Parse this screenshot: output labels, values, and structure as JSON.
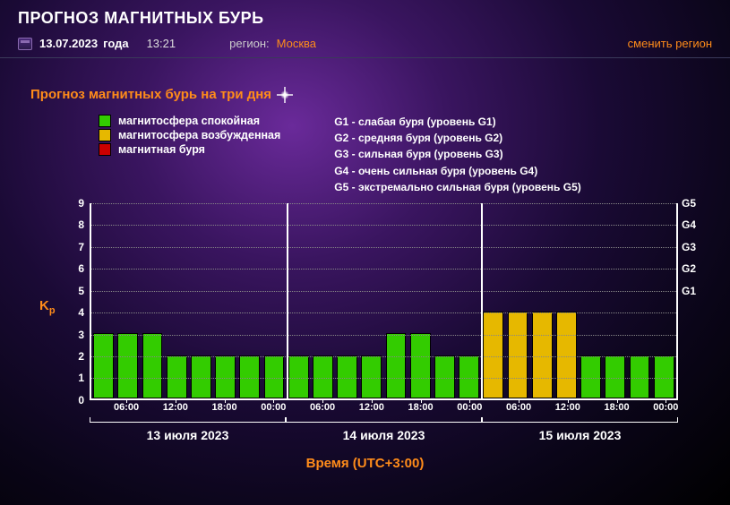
{
  "header": {
    "title": "ПРОГНОЗ МАГНИТНЫХ БУРЬ",
    "date": "13.07.2023",
    "year_word": "года",
    "time": "13:21",
    "region_label": "регион:",
    "region_value": "Москва",
    "change_region": "сменить регион"
  },
  "subtitle": "Прогноз магнитных бурь на три дня",
  "legend": {
    "items": [
      {
        "label": "магнитосфера спокойная",
        "color": "#33cc00"
      },
      {
        "label": "магнитосфера возбужденная",
        "color": "#e6b800"
      },
      {
        "label": "магнитная буря",
        "color": "#cc0000"
      }
    ],
    "g_levels": [
      "G1 - слабая буря (уровень G1)",
      "G2 - средняя буря (уровень G2)",
      "G3 - сильная буря (уровень G3)",
      "G4 - очень сильная буря (уровень G4)",
      "G5 - экстремально сильная буря (уровень G5)"
    ]
  },
  "chart": {
    "type": "bar",
    "kp_label": "Kp",
    "ylim": [
      0,
      9
    ],
    "yticks": [
      0,
      1,
      2,
      3,
      4,
      5,
      6,
      7,
      8,
      9
    ],
    "right_ticks": [
      {
        "label": "G1",
        "at": 5
      },
      {
        "label": "G2",
        "at": 6
      },
      {
        "label": "G3",
        "at": 7
      },
      {
        "label": "G4",
        "at": 8
      },
      {
        "label": "G5",
        "at": 9
      }
    ],
    "grid_color": "#888888",
    "axis_color": "#ffffff",
    "bar_colors": {
      "calm": "#33cc00",
      "excited": "#e6b800",
      "storm": "#cc0000"
    },
    "x_ticks": [
      "06:00",
      "12:00",
      "18:00",
      "00:00",
      "06:00",
      "12:00",
      "18:00",
      "00:00",
      "06:00",
      "12:00",
      "18:00",
      "00:00"
    ],
    "x_tick_positions": [
      1,
      3,
      5,
      7,
      9,
      11,
      13,
      15,
      17,
      19,
      21,
      23
    ],
    "day_separators": [
      8,
      16
    ],
    "days": [
      "13 июля 2023",
      "14 июля 2023",
      "15 июля 2023"
    ],
    "x_axis_title": "Время (UTC+3:00)",
    "bars": [
      {
        "value": 3,
        "state": "calm"
      },
      {
        "value": 3,
        "state": "calm"
      },
      {
        "value": 3,
        "state": "calm"
      },
      {
        "value": 2,
        "state": "calm"
      },
      {
        "value": 2,
        "state": "calm"
      },
      {
        "value": 2,
        "state": "calm"
      },
      {
        "value": 2,
        "state": "calm"
      },
      {
        "value": 2,
        "state": "calm"
      },
      {
        "value": 2,
        "state": "calm"
      },
      {
        "value": 2,
        "state": "calm"
      },
      {
        "value": 2,
        "state": "calm"
      },
      {
        "value": 2,
        "state": "calm"
      },
      {
        "value": 3,
        "state": "calm"
      },
      {
        "value": 3,
        "state": "calm"
      },
      {
        "value": 2,
        "state": "calm"
      },
      {
        "value": 2,
        "state": "calm"
      },
      {
        "value": 4,
        "state": "excited"
      },
      {
        "value": 4,
        "state": "excited"
      },
      {
        "value": 4,
        "state": "excited"
      },
      {
        "value": 4,
        "state": "excited"
      },
      {
        "value": 2,
        "state": "calm"
      },
      {
        "value": 2,
        "state": "calm"
      },
      {
        "value": 2,
        "state": "calm"
      },
      {
        "value": 2,
        "state": "calm"
      }
    ]
  }
}
